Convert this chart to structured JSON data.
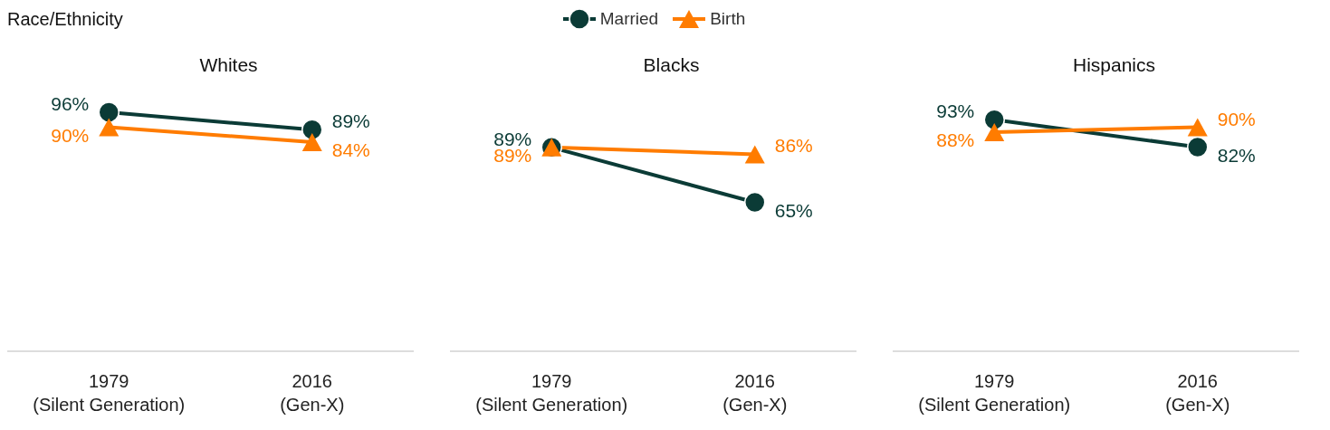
{
  "chart_data": [
    {
      "type": "line",
      "title": "Whites",
      "annotations": [
        "Race/Ethnicity"
      ],
      "categories": [
        "1979\n(Silent Generation)",
        "2016\n(Gen-X)"
      ],
      "tick_labels": "x",
      "line_style": "solid",
      "series": [
        {
          "color": "#0b3b36",
          "marker": "circle",
          "values": [
            96,
            89
          ],
          "value_labels": [
            "96%",
            "89%"
          ]
        },
        {
          "color": "#ff7c00",
          "marker": "triangle",
          "values": [
            90,
            84
          ],
          "value_labels": [
            "90%",
            "84%"
          ]
        }
      ]
    },
    {
      "type": "line",
      "title": "Blacks",
      "legend": "top",
      "categories": [
        "1979\n(Silent Generation)",
        "2016\n(Gen-X)"
      ],
      "tick_labels": "x",
      "line_style": "solid",
      "series": [
        {
          "name": "Married",
          "color": "#0b3b36",
          "marker": "circle",
          "values": [
            89,
            65
          ],
          "value_labels": [
            "89%",
            "65%"
          ]
        },
        {
          "name": "Birth",
          "color": "#ff7c00",
          "marker": "triangle",
          "values": [
            89,
            86
          ],
          "value_labels": [
            "89%",
            "86%"
          ]
        }
      ]
    },
    {
      "type": "line",
      "title": "Hispanics",
      "categories": [
        "1979\n(Silent Generation)",
        "2016\n(Gen-X)"
      ],
      "tick_labels": "x",
      "line_style": "solid",
      "series": [
        {
          "color": "#0b3b36",
          "marker": "circle",
          "values": [
            93,
            82
          ],
          "value_labels": [
            "93%",
            "82%"
          ]
        },
        {
          "color": "#ff7c00",
          "marker": "triangle",
          "values": [
            88,
            90
          ],
          "value_labels": [
            "88%",
            "90%"
          ]
        }
      ]
    }
  ]
}
